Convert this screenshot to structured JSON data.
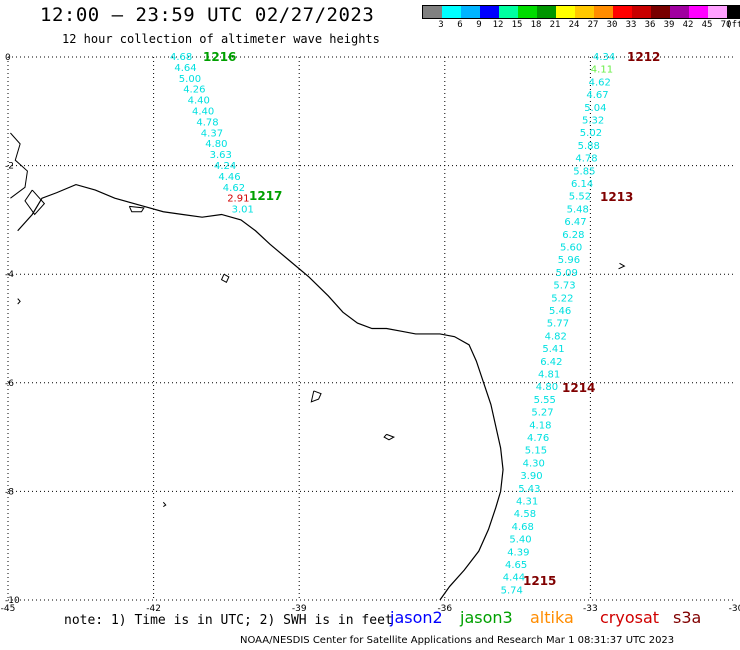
{
  "header": {
    "title": "12:00 — 23:59 UTC 02/27/2023",
    "subtitle": "12 hour collection of altimeter wave heights"
  },
  "legend": {
    "colors": [
      "#808080",
      "#00ffff",
      "#00b4ff",
      "#0000ff",
      "#00ffa0",
      "#00dc00",
      "#009600",
      "#ffff00",
      "#ffc800",
      "#ff8c00",
      "#ff0000",
      "#c80000",
      "#780000",
      "#a000a0",
      "#ff00ff",
      "#ffa0ff",
      "#000000"
    ],
    "ticks": [
      "3",
      "6",
      "9",
      "12",
      "15",
      "18",
      "21",
      "24",
      "27",
      "30",
      "33",
      "36",
      "39",
      "42",
      "45",
      "70",
      "(ft)"
    ]
  },
  "map": {
    "colors": {
      "cyan": "#00e0e0",
      "green": "#00a000",
      "lightgreen": "#66ee44",
      "red": "#d00000",
      "darkred": "#800000",
      "coast": "#000000",
      "grid": "#000000"
    },
    "xticks": [
      -45,
      -42,
      -39,
      -36,
      -33,
      -30
    ],
    "yticks": [
      0,
      -2,
      -4,
      -6,
      -8,
      -10
    ],
    "track_values": {
      "t1216": [
        "4.68",
        "4.64",
        "5.00",
        "4.26",
        "4.40",
        "4.40",
        "4.78",
        "4.37",
        "4.80",
        "3.63",
        "4.24",
        "4.46",
        "4.62",
        "2.91",
        "3.01"
      ],
      "t1212": [
        "4.34",
        "4.11",
        "4.62",
        "4.67",
        "5.04",
        "5.32",
        "5.02",
        "5.88",
        "4.78",
        "5.85",
        "6.14",
        "5.52",
        "5.48",
        "6.47",
        "6.28",
        "5.60",
        "5.96",
        "5.09",
        "5.73",
        "5.22",
        "5.46",
        "5.77",
        "4.82",
        "5.41",
        "6.42",
        "4.81",
        "4.80",
        "5.55",
        "5.27",
        "4.18",
        "4.76",
        "5.15",
        "4.30",
        "3.90",
        "5.43",
        "4.31",
        "4.58",
        "4.68",
        "5.40",
        "4.39",
        "4.65",
        "4.44",
        "5.74"
      ]
    },
    "pass_labels": {
      "p1216": "1216",
      "p1217": "1217",
      "p1212": "1212",
      "p1213": "1213",
      "p1214": "1214",
      "p1215": "1215"
    }
  },
  "note": "note: 1) Time is in UTC; 2) SWH is in feet",
  "satellites": {
    "jason2": {
      "label": "jason2",
      "color": "#0000ff"
    },
    "jason3": {
      "label": "jason3",
      "color": "#00a000"
    },
    "altika": {
      "label": "altika",
      "color": "#ff8c00"
    },
    "cryosat": {
      "label": "cryosat",
      "color": "#d00000"
    },
    "s3a": {
      "label": "s3a",
      "color": "#800000"
    }
  },
  "credit": "NOAA/NESDIS Center for Satellite Applications and Research   Mar  1 08:31:37 UTC 2023"
}
